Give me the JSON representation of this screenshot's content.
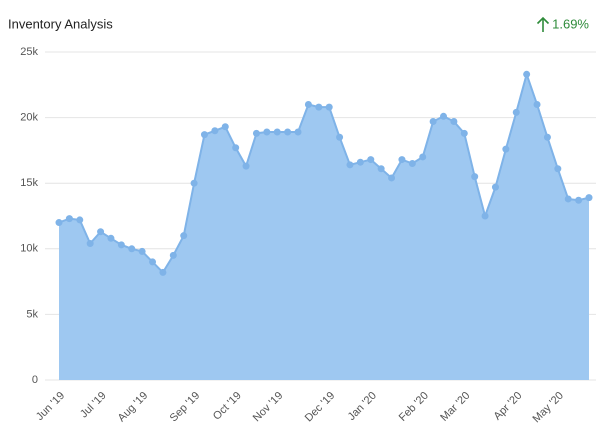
{
  "header": {
    "title": "Inventory Analysis",
    "change": "1.69%"
  },
  "chart_data": {
    "type": "area",
    "categories": [
      "Jun '19",
      null,
      null,
      null,
      "Jul '19",
      null,
      null,
      null,
      "Aug '19",
      null,
      null,
      null,
      null,
      "Sep '19",
      null,
      null,
      null,
      "Oct '19",
      null,
      null,
      null,
      "Nov '19",
      null,
      null,
      null,
      null,
      "Dec '19",
      null,
      null,
      null,
      "Jan '20",
      null,
      null,
      null,
      null,
      "Feb '20",
      null,
      null,
      null,
      "Mar '20",
      null,
      null,
      null,
      null,
      "Apr '20",
      null,
      null,
      null,
      "May '20",
      null,
      null,
      null
    ],
    "series": [
      {
        "name": "Inventory",
        "color": "#7fb3e8",
        "values": [
          12000,
          12300,
          12200,
          10400,
          11300,
          10800,
          10300,
          10000,
          9800,
          9000,
          8200,
          9500,
          11000,
          15000,
          18700,
          19000,
          19300,
          17700,
          16300,
          18800,
          18900,
          18900,
          18900,
          18900,
          21000,
          20800,
          20800,
          18500,
          16400,
          16600,
          16800,
          16100,
          15400,
          16800,
          16500,
          17000,
          19700,
          20100,
          19700,
          18800,
          15500,
          12500,
          14700,
          17600,
          20400,
          23300,
          21000,
          18500,
          16100,
          13800,
          13700,
          13900
        ]
      }
    ],
    "ylim": [
      0,
      25000
    ],
    "yticks": [
      0,
      {
        "value": 5000,
        "label": "5k"
      },
      {
        "value": 10000,
        "label": "10k"
      },
      {
        "value": 15000,
        "label": "15k"
      },
      {
        "value": 20000,
        "label": "20k"
      },
      {
        "value": 25000,
        "label": "25k"
      }
    ],
    "grid": true
  }
}
